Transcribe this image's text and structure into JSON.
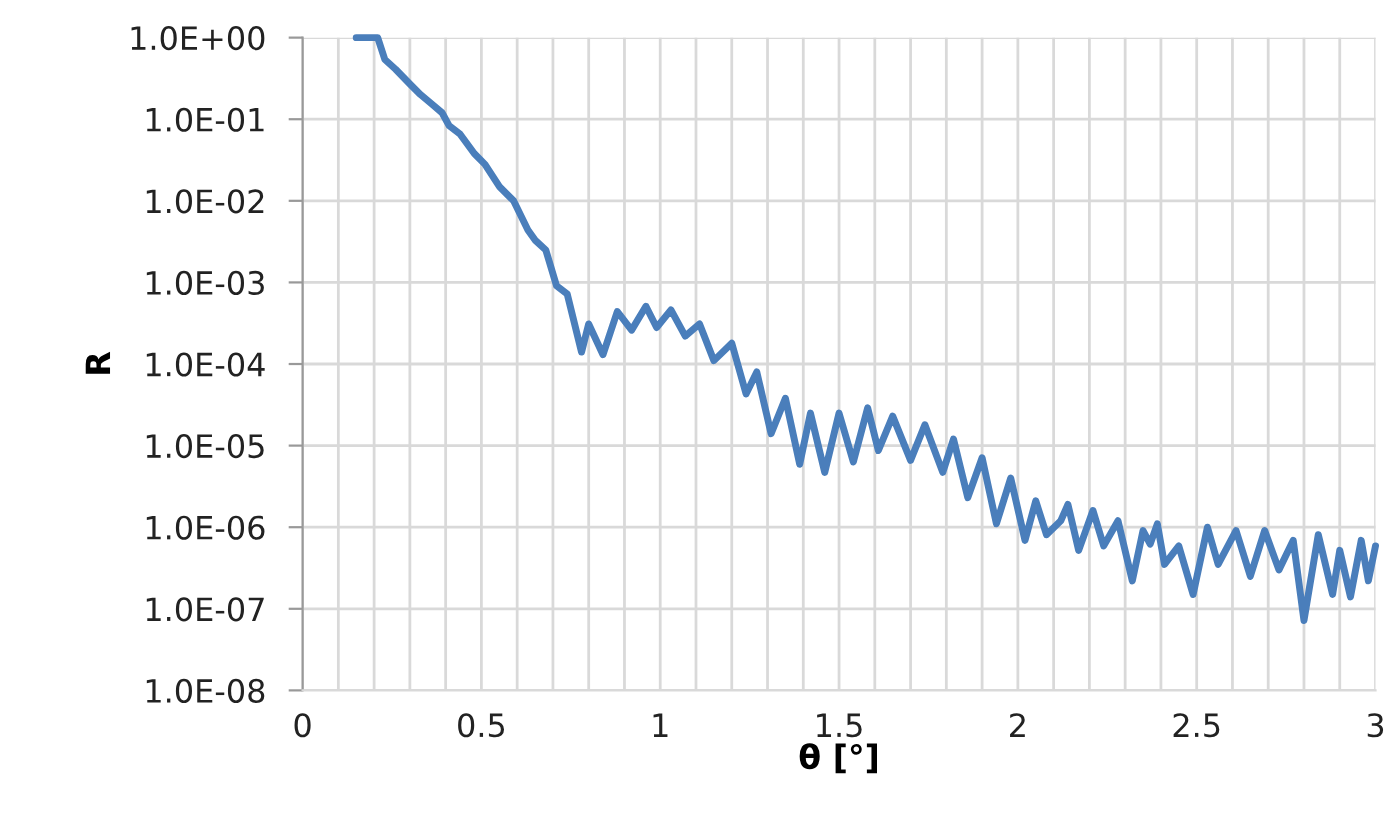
{
  "chart_data": {
    "type": "line",
    "xlabel": "θ [°]",
    "ylabel": "R",
    "log": "y",
    "grid": true,
    "marker": "none",
    "line_style": "solid",
    "xlim": [
      0,
      3
    ],
    "ylim": [
      1e-08,
      1
    ],
    "xticks": [
      0,
      {
        "value": 0.1,
        "label": null
      },
      {
        "value": 0.2,
        "label": null
      },
      {
        "value": 0.3,
        "label": null
      },
      {
        "value": 0.4,
        "label": null
      },
      0.5,
      {
        "value": 0.6,
        "label": null
      },
      {
        "value": 0.7,
        "label": null
      },
      {
        "value": 0.8,
        "label": null
      },
      {
        "value": 0.9,
        "label": null
      },
      1,
      {
        "value": 1.1,
        "label": null
      },
      {
        "value": 1.2,
        "label": null
      },
      {
        "value": 1.3,
        "label": null
      },
      {
        "value": 1.4,
        "label": null
      },
      1.5,
      {
        "value": 1.6,
        "label": null
      },
      {
        "value": 1.7,
        "label": null
      },
      {
        "value": 1.8,
        "label": null
      },
      {
        "value": 1.9,
        "label": null
      },
      2,
      {
        "value": 2.1,
        "label": null
      },
      {
        "value": 2.2,
        "label": null
      },
      {
        "value": 2.3,
        "label": null
      },
      {
        "value": 2.4,
        "label": null
      },
      2.5,
      {
        "value": 2.6,
        "label": null
      },
      {
        "value": 2.7,
        "label": null
      },
      {
        "value": 2.8,
        "label": null
      },
      {
        "value": 2.9,
        "label": null
      },
      3
    ],
    "yticks": [
      {
        "value": 1e-08,
        "label": "1.0E-08"
      },
      {
        "value": 1e-07,
        "label": "1.0E-07"
      },
      {
        "value": 1e-06,
        "label": "1.0E-06"
      },
      {
        "value": 1e-05,
        "label": "1.0E-05"
      },
      {
        "value": 0.0001,
        "label": "1.0E-04"
      },
      {
        "value": 0.001,
        "label": "1.0E-03"
      },
      {
        "value": 0.01,
        "label": "1.0E-02"
      },
      {
        "value": 0.1,
        "label": "1.0E-01"
      },
      {
        "value": 1,
        "label": "1.0E+00"
      }
    ],
    "series": [
      {
        "color": "#4a7ebb",
        "x": [
          0.15,
          0.21,
          0.23,
          0.26,
          0.3,
          0.33,
          0.36,
          0.39,
          0.41,
          0.44,
          0.48,
          0.51,
          0.55,
          0.59,
          0.63,
          0.65,
          0.68,
          0.71,
          0.74,
          0.78,
          0.8,
          0.84,
          0.88,
          0.92,
          0.96,
          0.99,
          1.03,
          1.07,
          1.11,
          1.15,
          1.2,
          1.24,
          1.27,
          1.31,
          1.35,
          1.39,
          1.42,
          1.46,
          1.5,
          1.54,
          1.58,
          1.61,
          1.65,
          1.7,
          1.74,
          1.79,
          1.82,
          1.86,
          1.9,
          1.94,
          1.98,
          2.02,
          2.05,
          2.08,
          2.12,
          2.14,
          2.17,
          2.21,
          2.24,
          2.28,
          2.32,
          2.35,
          2.37,
          2.39,
          2.41,
          2.45,
          2.49,
          2.53,
          2.56,
          2.61,
          2.65,
          2.69,
          2.73,
          2.77,
          2.8,
          2.84,
          2.88,
          2.9,
          2.93,
          2.96,
          2.98,
          3.0
        ],
        "values": [
          1.0,
          1.0,
          0.54,
          0.41,
          0.27,
          0.2,
          0.155,
          0.12,
          0.083,
          0.066,
          0.038,
          0.028,
          0.015,
          0.01,
          0.0044,
          0.0033,
          0.0025,
          0.00091,
          0.00072,
          0.00014,
          0.00031,
          0.00013,
          0.00044,
          0.00026,
          0.00051,
          0.00028,
          0.00046,
          0.00022,
          0.00031,
          0.00011,
          0.00018,
          4.3e-05,
          8e-05,
          1.4e-05,
          3.8e-05,
          5.9e-06,
          2.5e-05,
          4.7e-06,
          2.5e-05,
          6.3e-06,
          2.9e-05,
          8.7e-06,
          2.3e-05,
          6.6e-06,
          1.8e-05,
          4.7e-06,
          1.2e-05,
          2.3e-06,
          7.1e-06,
          1.1e-06,
          4e-06,
          6.9e-07,
          2.1e-06,
          8.1e-07,
          1.2e-06,
          1.9e-06,
          5.2e-07,
          1.6e-06,
          5.9e-07,
          1.2e-06,
          2.2e-07,
          9.1e-07,
          6.2e-07,
          1.1e-06,
          3.5e-07,
          5.9e-07,
          1.5e-07,
          1e-06,
          3.5e-07,
          9.1e-07,
          2.5e-07,
          9.1e-07,
          3e-07,
          6.9e-07,
          7.2e-08,
          8.1e-07,
          1.5e-07,
          5.2e-07,
          1.4e-07,
          6.9e-07,
          2.2e-07,
          5.9e-07
        ]
      }
    ]
  }
}
